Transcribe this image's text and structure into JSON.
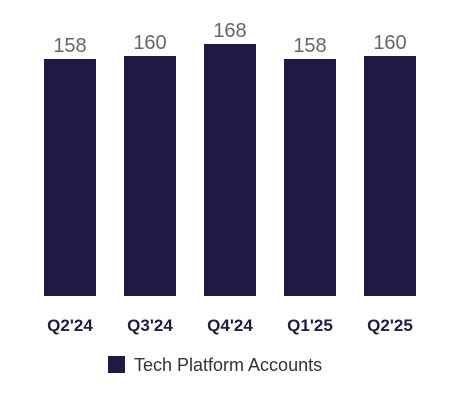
{
  "chart_data": {
    "type": "bar",
    "categories": [
      "Q2'24",
      "Q3'24",
      "Q4'24",
      "Q1'25",
      "Q2'25"
    ],
    "series": [
      {
        "name": "Tech Platform Accounts",
        "values": [
          158,
          160,
          168,
          158,
          160
        ],
        "color": "#211a45"
      }
    ],
    "show_data_labels": true,
    "grid": false,
    "legend": "bottom-center",
    "title": "",
    "xlabel": "",
    "ylabel": ""
  },
  "colors": {
    "bar": "#211a45",
    "tick_label": "#211a45",
    "value_label": "#666666",
    "legend_text": "#333333"
  }
}
